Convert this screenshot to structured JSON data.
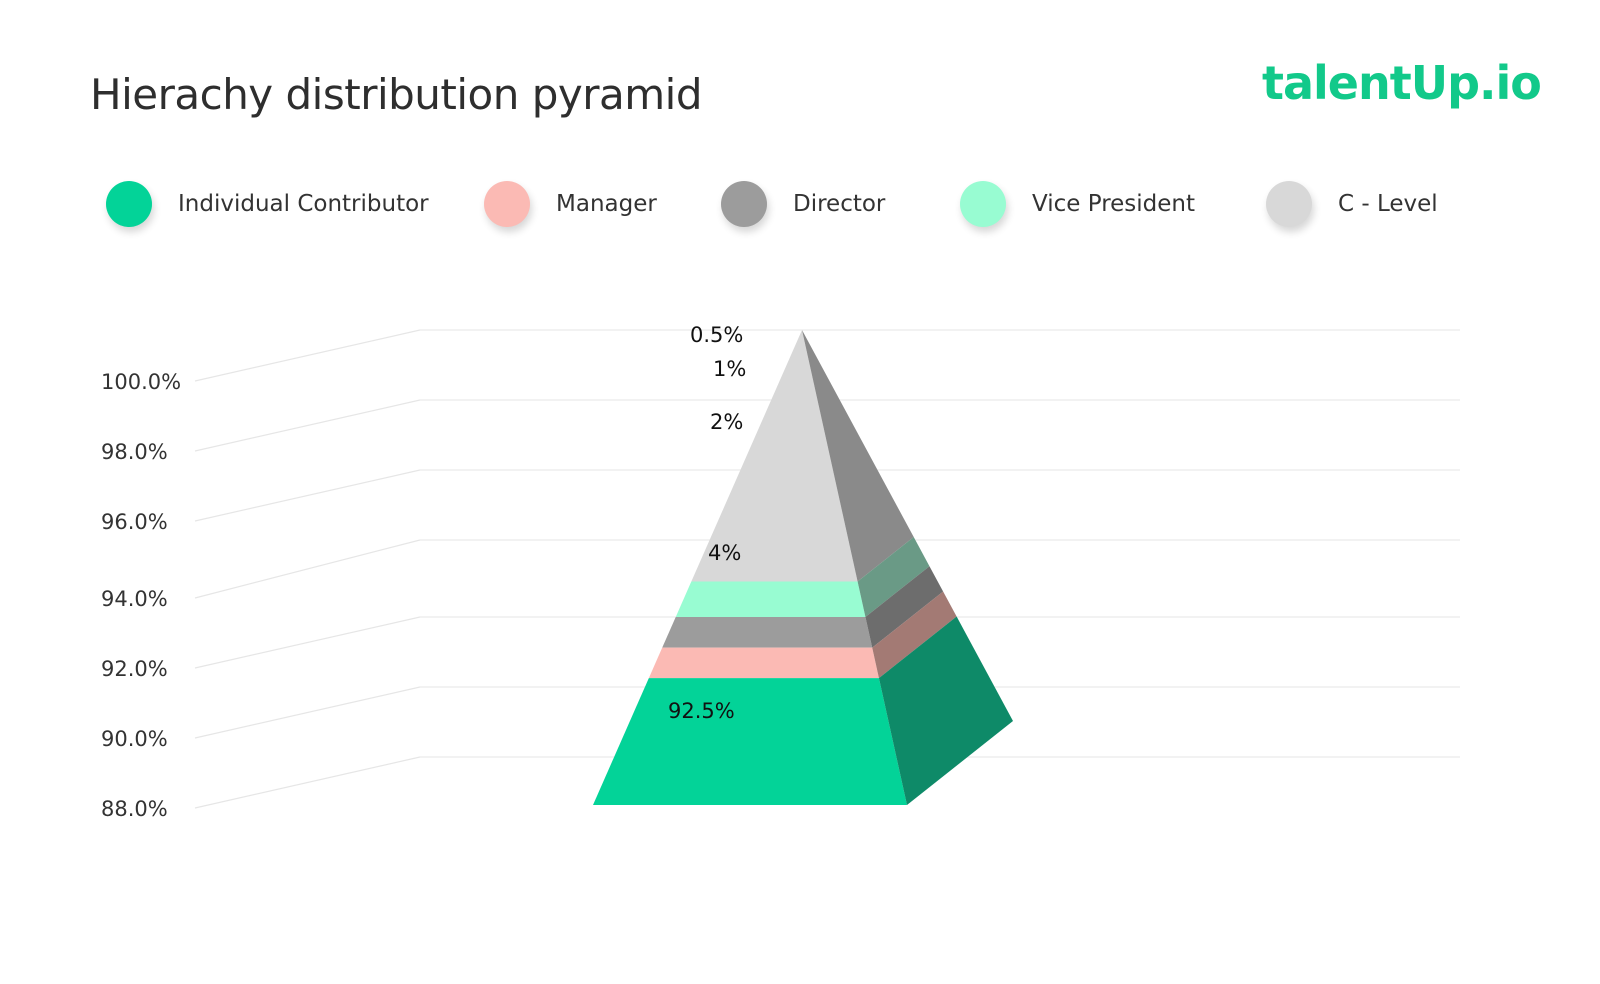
{
  "logo": {
    "part1": "talent",
    "part2": "Up",
    "part3": ".io",
    "color": "#12c98a"
  },
  "chart_data": {
    "type": "pyramid",
    "title": "Hierachy distribution pyramid",
    "ylim": [
      88.0,
      100.0
    ],
    "y_ticks": [
      "100.0%",
      "98.0%",
      "96.0%",
      "94.0%",
      "92.0%",
      "90.0%",
      "88.0%"
    ],
    "legend": [
      {
        "name": "Individual Contributor",
        "color": "#03d398"
      },
      {
        "name": "Manager",
        "color": "#fbbab4"
      },
      {
        "name": "Director",
        "color": "#9c9c9c"
      },
      {
        "name": "Vice President",
        "color": "#98fcd2"
      },
      {
        "name": "C - Level",
        "color": "#d8d8d8"
      }
    ],
    "series": [
      {
        "name": "Individual Contributor",
        "value": 92.5,
        "label": "92.5%",
        "color": "#03d398",
        "side_color": "#0e8a68"
      },
      {
        "name": "Manager",
        "value": 4,
        "label": "4%",
        "color": "#fbbab4",
        "side_color": "#a37a74"
      },
      {
        "name": "Director",
        "value": 2,
        "label": "2%",
        "color": "#9c9c9c",
        "side_color": "#6d6d6d"
      },
      {
        "name": "Vice President",
        "value": 1,
        "label": "1%",
        "color": "#98fcd2",
        "side_color": "#6a9a86"
      },
      {
        "name": "C - Level",
        "value": 0.5,
        "label": "0.5%",
        "color": "#d8d8d8",
        "side_color": "#8a8a8a"
      }
    ]
  }
}
